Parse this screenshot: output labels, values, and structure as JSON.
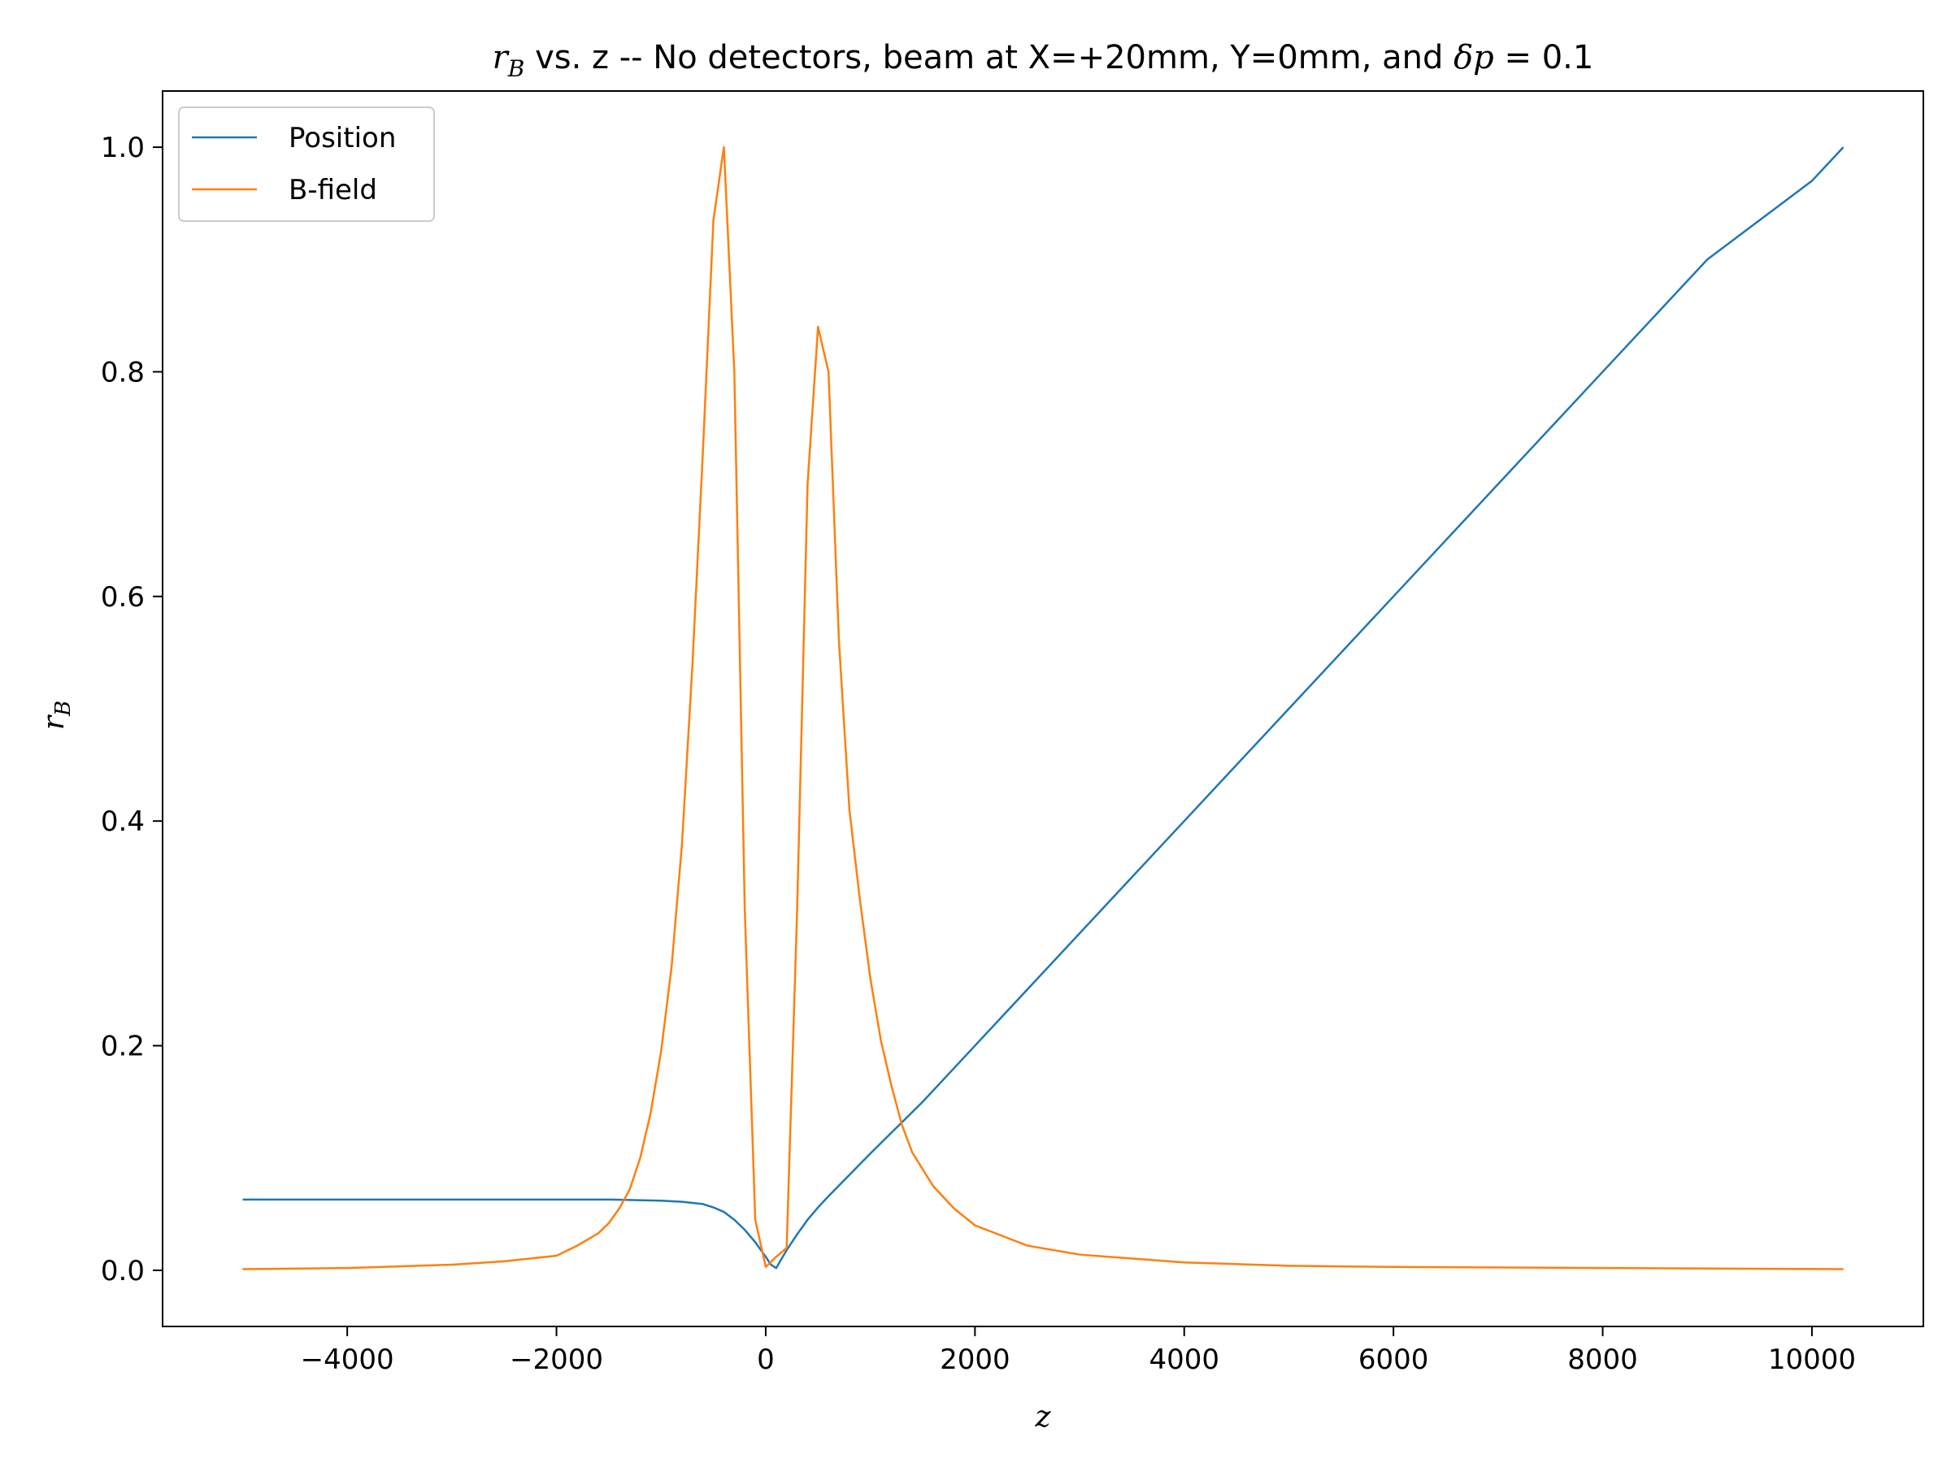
{
  "chart_data": {
    "type": "line",
    "title": "r_B vs. z -- No detectors, beam at X=+20mm, Y=0mm, and δp = 0.1",
    "title_parts": {
      "prefix": "r",
      "prefix_sub": "B",
      "middle": " vs. z -- No detectors, beam at X=+20mm, Y=0mm, and ",
      "delta": "δp",
      "suffix": " = 0.1"
    },
    "xlabel": "z",
    "ylabel": "r",
    "ylabel_sub": "B",
    "xlim": [
      -5765,
      11065
    ],
    "ylim": [
      -0.05,
      1.05
    ],
    "xticks": [
      -4000,
      -2000,
      0,
      2000,
      4000,
      6000,
      8000,
      10000
    ],
    "xtick_labels": [
      "−4000",
      "−2000",
      "0",
      "2000",
      "4000",
      "6000",
      "8000",
      "10000"
    ],
    "yticks": [
      0.0,
      0.2,
      0.4,
      0.6,
      0.8,
      1.0
    ],
    "ytick_labels": [
      "0.0",
      "0.2",
      "0.4",
      "0.6",
      "0.8",
      "1.0"
    ],
    "grid": false,
    "legend_position": "top-left",
    "series": [
      {
        "name": "Position",
        "color": "#1f77b4",
        "x": [
          -5000,
          -4000,
          -3000,
          -2000,
          -1500,
          -1000,
          -800,
          -600,
          -500,
          -400,
          -300,
          -200,
          -100,
          0,
          50,
          100,
          200,
          300,
          400,
          500,
          600,
          800,
          1000,
          1500,
          2000,
          3000,
          4000,
          5000,
          6000,
          7000,
          8000,
          9000,
          10000,
          10300
        ],
        "y": [
          0.063,
          0.063,
          0.063,
          0.063,
          0.063,
          0.062,
          0.061,
          0.059,
          0.056,
          0.052,
          0.045,
          0.036,
          0.025,
          0.012,
          0.005,
          0.002,
          0.018,
          0.032,
          0.045,
          0.056,
          0.066,
          0.085,
          0.104,
          0.15,
          0.2,
          0.3,
          0.4,
          0.5,
          0.6,
          0.7,
          0.8,
          0.9,
          0.97,
          1.0
        ]
      },
      {
        "name": "B-field",
        "color": "#ff7f0e",
        "x": [
          -5000,
          -4000,
          -3000,
          -2500,
          -2000,
          -1800,
          -1600,
          -1500,
          -1400,
          -1300,
          -1200,
          -1100,
          -1000,
          -900,
          -800,
          -700,
          -600,
          -500,
          -400,
          -300,
          -200,
          -100,
          0,
          100,
          200,
          300,
          400,
          500,
          600,
          700,
          800,
          900,
          1000,
          1100,
          1200,
          1300,
          1400,
          1600,
          1800,
          2000,
          2500,
          3000,
          4000,
          5000,
          6000,
          8000,
          10300
        ],
        "y": [
          0.001,
          0.002,
          0.005,
          0.008,
          0.013,
          0.022,
          0.033,
          0.042,
          0.055,
          0.072,
          0.1,
          0.14,
          0.195,
          0.27,
          0.38,
          0.54,
          0.73,
          0.935,
          1.0,
          0.8,
          0.32,
          0.045,
          0.003,
          0.012,
          0.02,
          0.32,
          0.7,
          0.84,
          0.8,
          0.56,
          0.41,
          0.33,
          0.26,
          0.205,
          0.165,
          0.13,
          0.105,
          0.075,
          0.055,
          0.04,
          0.022,
          0.014,
          0.007,
          0.004,
          0.003,
          0.002,
          0.001
        ]
      }
    ]
  }
}
